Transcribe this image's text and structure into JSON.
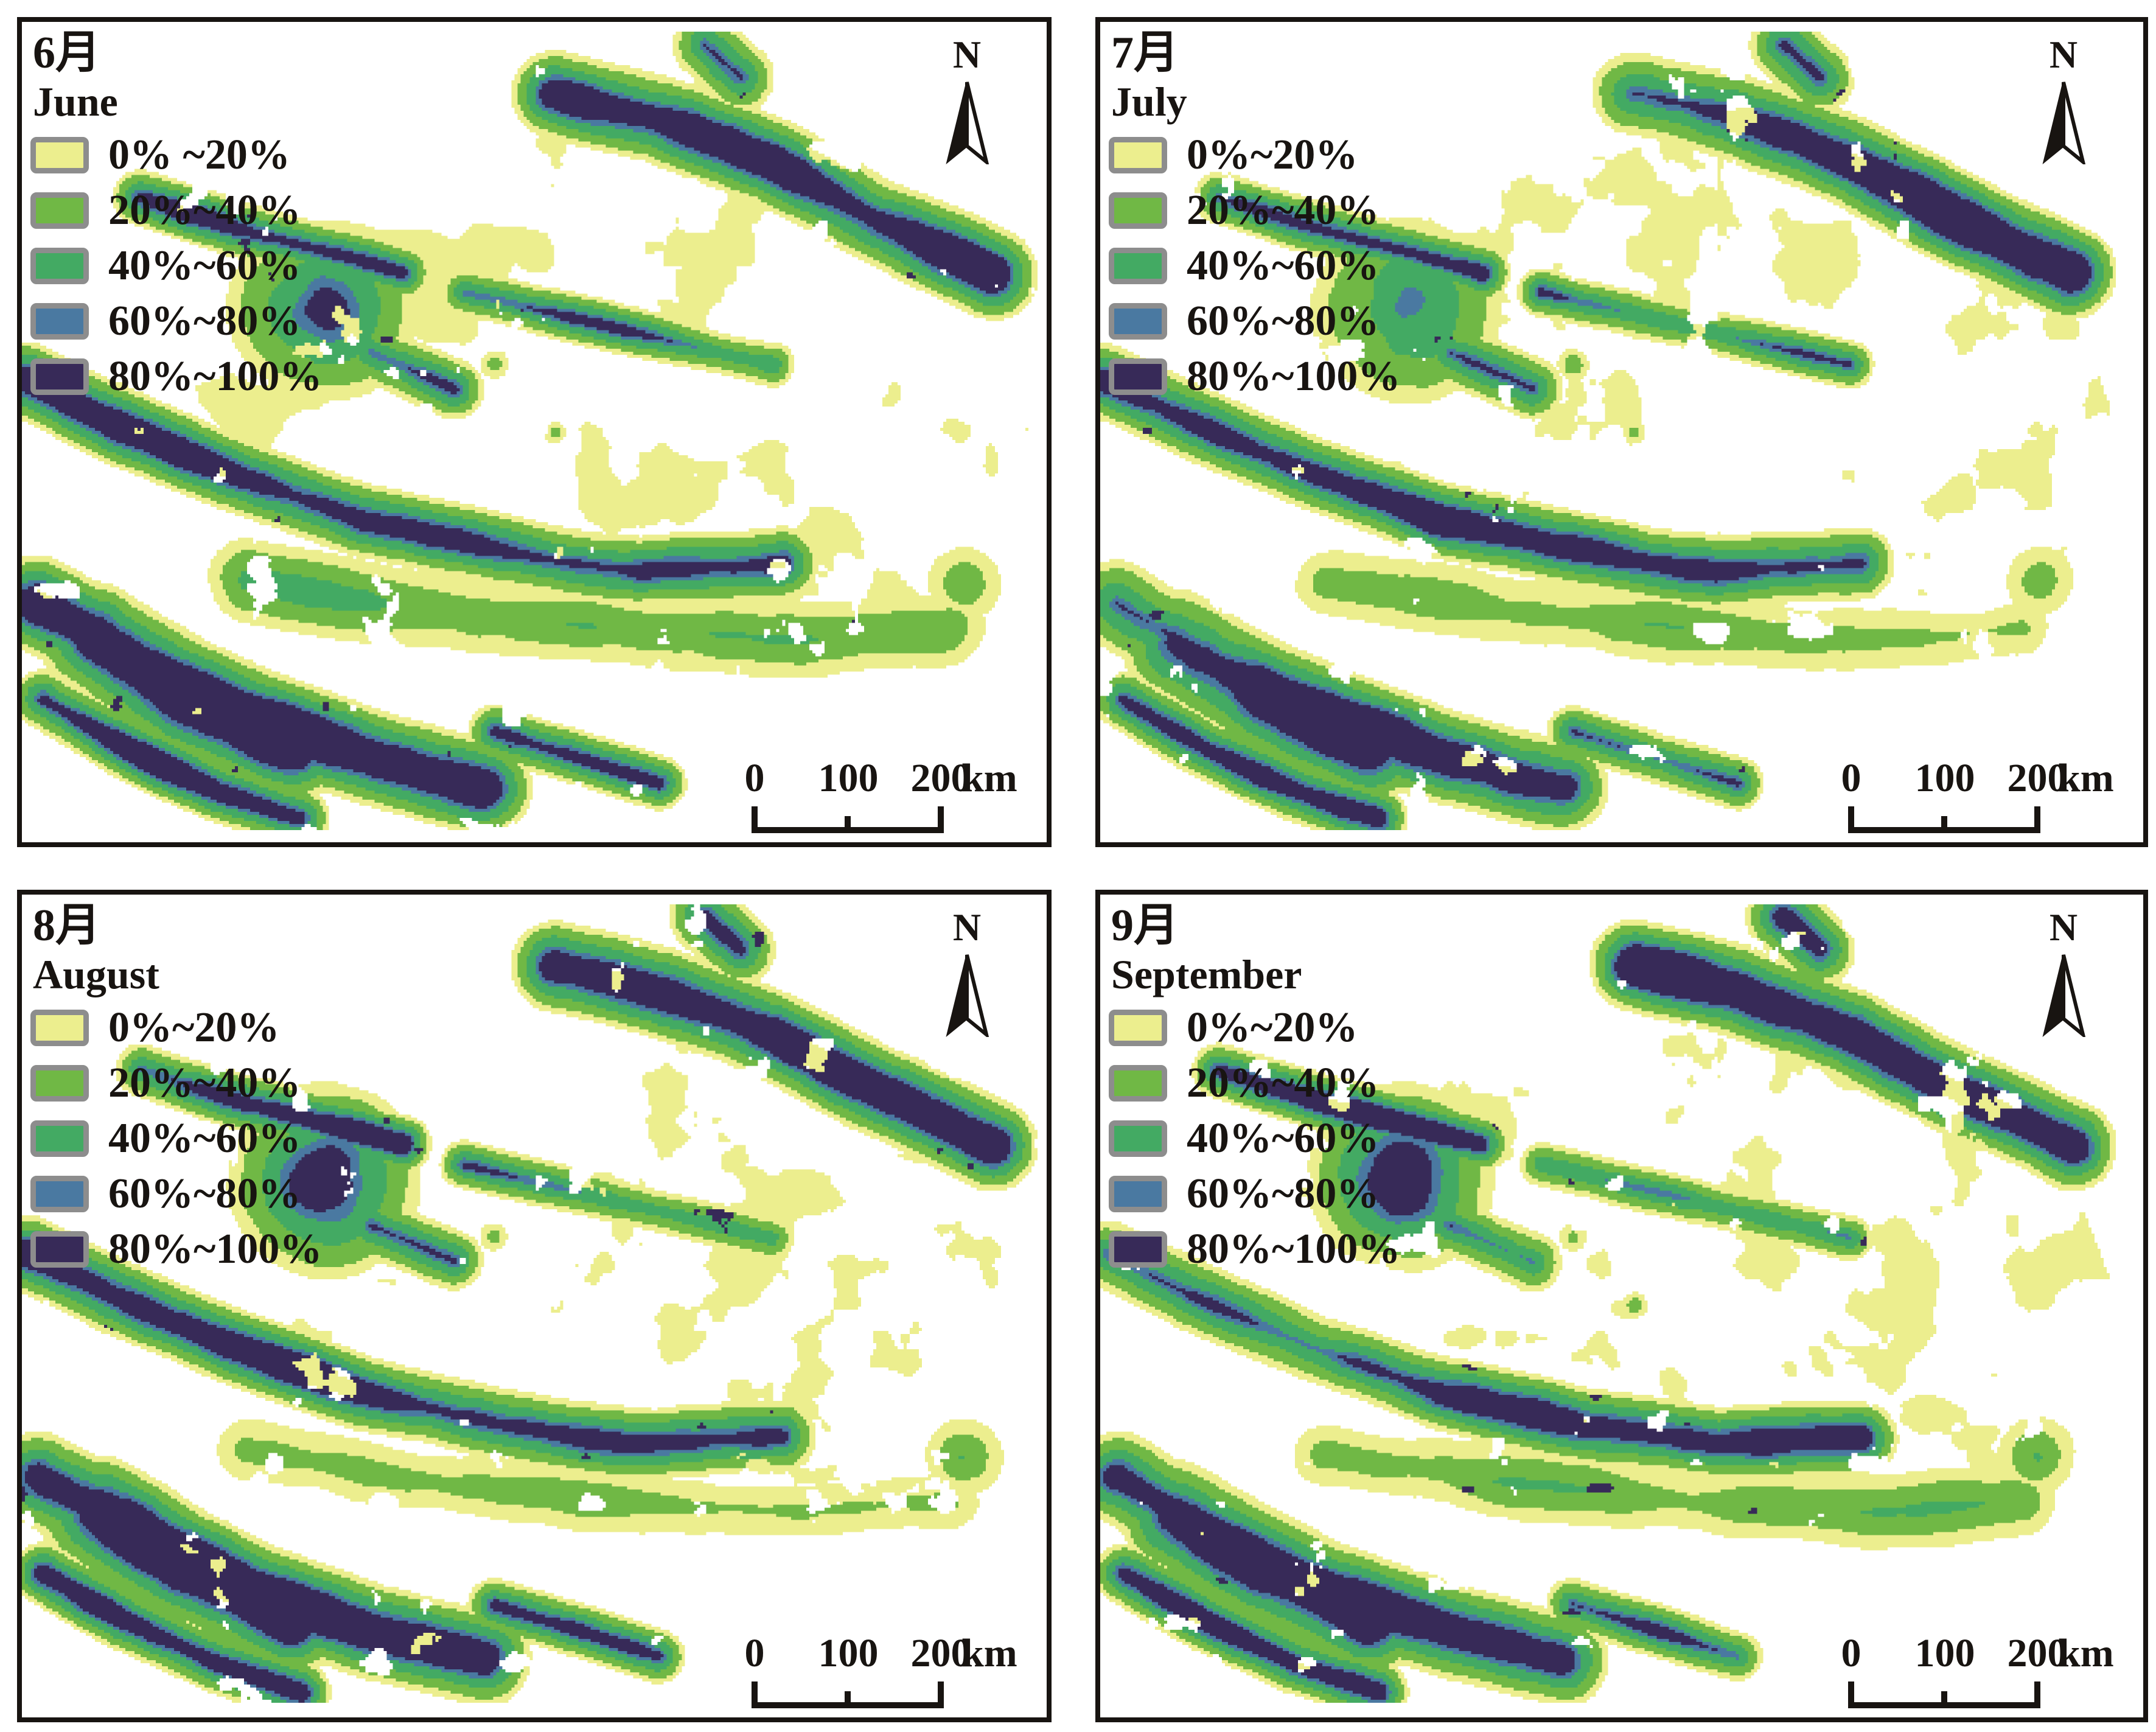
{
  "figure": {
    "north_label": "N",
    "palette": {
      "class1": "#ECEE8E",
      "class2": "#70B845",
      "class3": "#43AA63",
      "class4": "#4A79A1",
      "class5": "#372A58",
      "swatch_border": "#8D8D8D",
      "ink": "#181411",
      "map_background": "#FFFFFF"
    },
    "scalebar": {
      "tick0": "0",
      "tick100": "100",
      "tick200": "200",
      "unit": "km"
    },
    "panels": [
      {
        "title_zh": "6月",
        "title_en": "June",
        "legend_labels": [
          "0% ~20%",
          "20%~40%",
          "40%~60%",
          "60%~80%",
          "80%~100%"
        ]
      },
      {
        "title_zh": "7月",
        "title_en": "July",
        "legend_labels": [
          "0%~20%",
          "20%~40%",
          "40%~60%",
          "60%~80%",
          "80%~100%"
        ]
      },
      {
        "title_zh": "8月",
        "title_en": "August",
        "legend_labels": [
          "0%~20%",
          "20%~40%",
          "40%~60%",
          "60%~80%",
          "80%~100%"
        ]
      },
      {
        "title_zh": "9月",
        "title_en": "September",
        "legend_labels": [
          "0%~20%",
          "20%~40%",
          "40%~60%",
          "60%~80%",
          "80%~100%"
        ]
      }
    ]
  }
}
